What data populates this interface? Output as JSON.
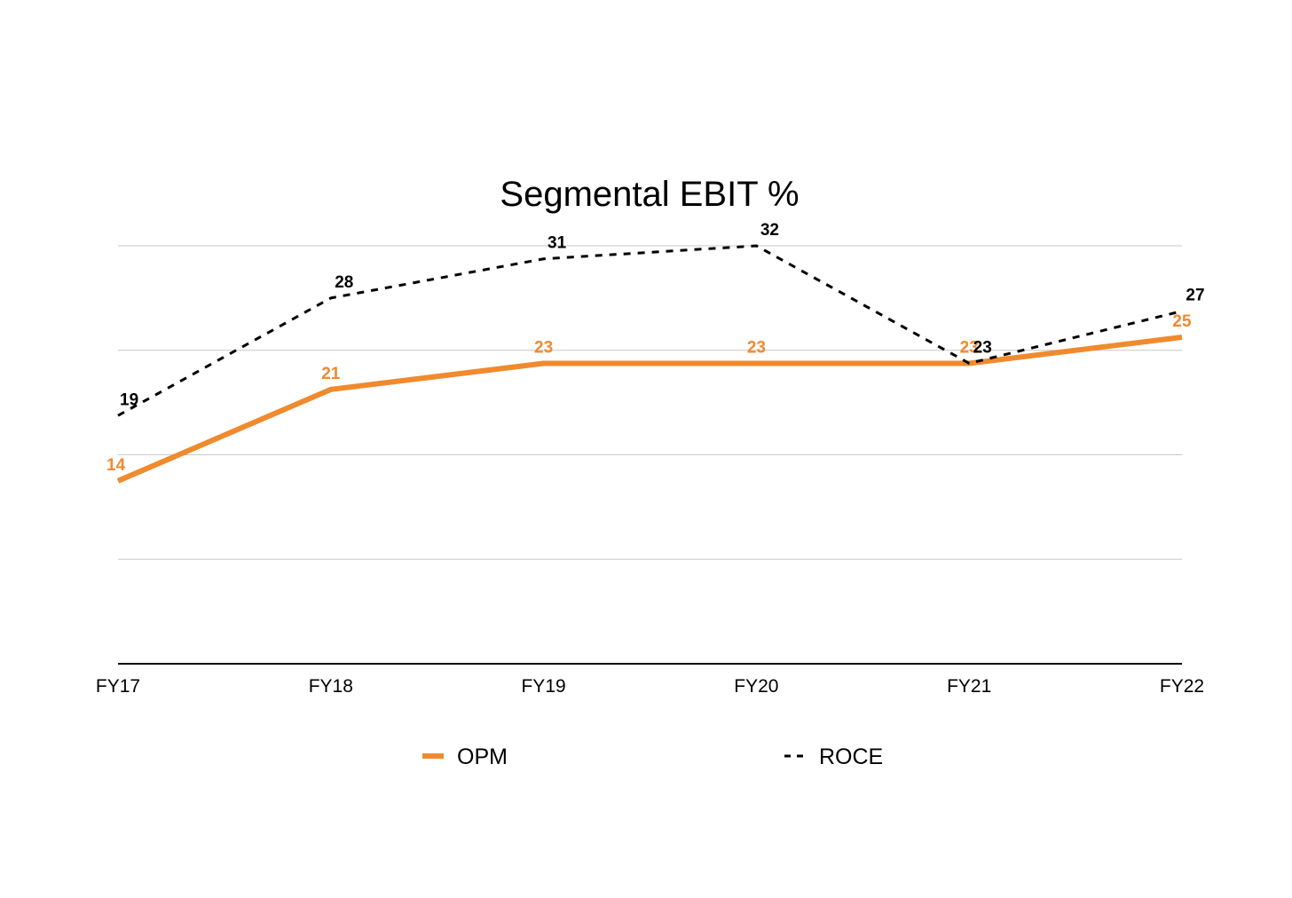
{
  "chart_data": {
    "type": "line",
    "title": "Segmental EBIT %",
    "xlabel": "",
    "ylabel": "",
    "categories": [
      "FY17",
      "FY18",
      "FY19",
      "FY20",
      "FY21",
      "FY22"
    ],
    "series": [
      {
        "name": "OPM",
        "values": [
          14,
          21,
          23,
          23,
          23,
          25
        ],
        "labels": [
          "14",
          "21",
          "23",
          "23",
          "23",
          "25"
        ],
        "color": "#F08A2E",
        "style": "solid"
      },
      {
        "name": "ROCE",
        "values": [
          19,
          28,
          31,
          32,
          23,
          27
        ],
        "labels": [
          "19",
          "28",
          "31",
          "32",
          "23",
          "27"
        ],
        "color": "#000000",
        "style": "dashed"
      }
    ],
    "ylim": [
      0,
      32
    ],
    "yticks": [
      0,
      8,
      16,
      24,
      32
    ],
    "y_axis_labels_shown": false,
    "grid": true,
    "legend_position": "bottom"
  }
}
